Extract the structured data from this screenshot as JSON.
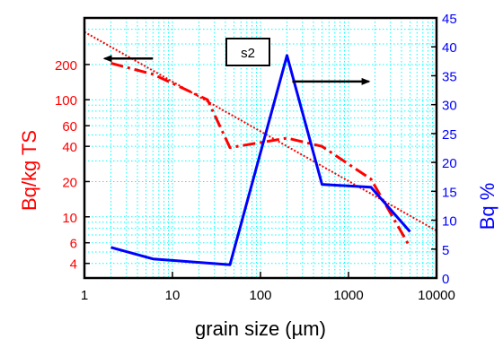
{
  "chart_data": {
    "type": "line",
    "xlabel": "grain size (µm)",
    "ylabel_left": "Bq/kg TS",
    "ylabel_right": "Bq %",
    "x_scale": "log",
    "xlim": [
      1,
      10000
    ],
    "x_ticks": [
      1,
      10,
      100,
      1000,
      10000
    ],
    "x_tick_labels": [
      "1",
      "10",
      "100",
      "1000",
      "10000"
    ],
    "y_left_scale": "log",
    "y_left_lim": [
      3,
      500
    ],
    "y_left_ticks": [
      4,
      6,
      10,
      20,
      40,
      60,
      100,
      200
    ],
    "y_left_tick_labels": [
      "4",
      "6",
      "10",
      "20",
      "40",
      "60",
      "100",
      "200"
    ],
    "y_right_lim": [
      0,
      45
    ],
    "y_right_ticks": [
      0,
      5,
      10,
      15,
      20,
      25,
      30,
      35,
      40,
      45
    ],
    "y_right_tick_labels": [
      "0",
      "5",
      "10",
      "15",
      "20",
      "25",
      "30",
      "35",
      "40",
      "45"
    ],
    "grid": true,
    "annotation": "s2",
    "colors": {
      "left_axis": "#ff0000",
      "right_axis": "#0000ff",
      "grid": "#00ffff",
      "frame": "#000000"
    },
    "series": [
      {
        "axis": "left",
        "style": "dash-dot",
        "color": "#ff0000",
        "x": [
          2,
          6,
          25,
          45,
          200,
          500,
          1800,
          5000
        ],
        "y": [
          205,
          165,
          100,
          39,
          47,
          40,
          21,
          5.5
        ]
      },
      {
        "axis": "left",
        "style": "dotted-fit",
        "color": "#ff0000",
        "x": [
          1,
          10000
        ],
        "y": [
          380,
          7.6
        ]
      },
      {
        "axis": "right",
        "style": "solid",
        "color": "#0000ff",
        "x": [
          2,
          6,
          45,
          200,
          500,
          1800,
          5000
        ],
        "y": [
          5.3,
          3.3,
          2.3,
          38.5,
          16.2,
          15.7,
          8
        ]
      }
    ],
    "arrows": [
      {
        "from": [
          6,
          225
        ],
        "to": [
          1.7,
          225
        ],
        "axis": "left",
        "points_to": "left-axis"
      },
      {
        "from": [
          230,
          34
        ],
        "to": [
          1700,
          34
        ],
        "axis": "right",
        "points_to": "right-axis"
      }
    ]
  }
}
